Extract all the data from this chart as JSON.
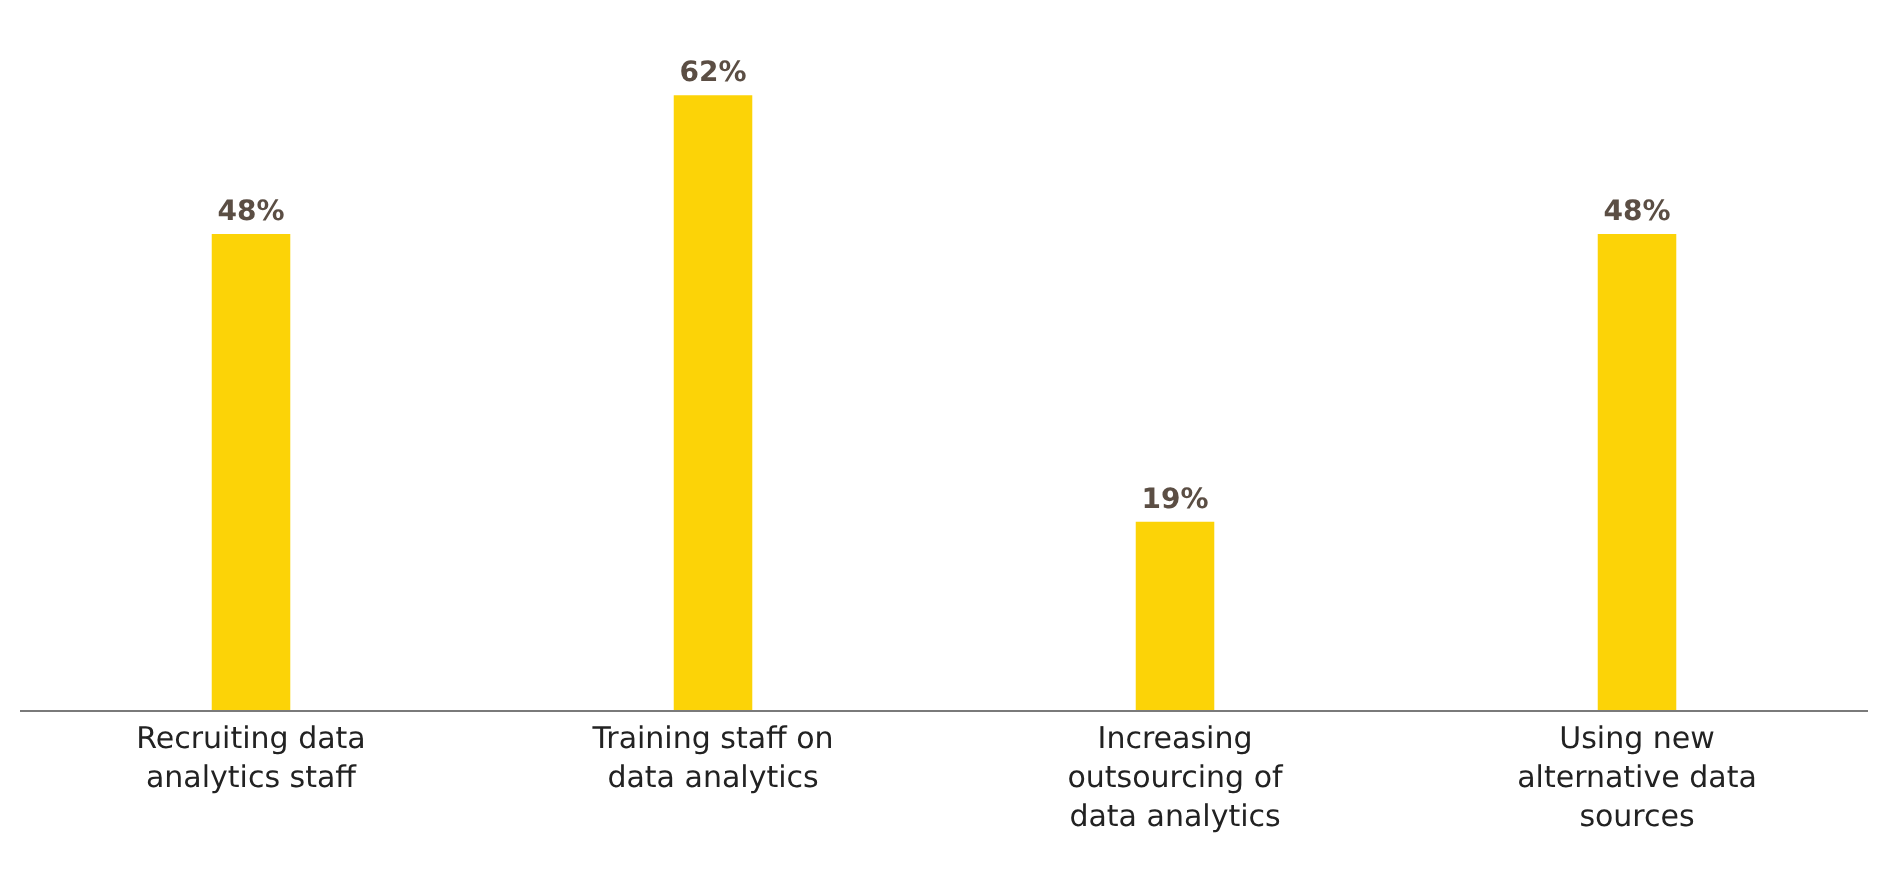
{
  "chart_data": {
    "type": "bar",
    "categories": [
      "Recruiting data analytics staff",
      "Training staff on data analytics",
      "Increasing outsourcing of data analytics",
      "Using new alternative data sources"
    ],
    "values": [
      48,
      62,
      19,
      48
    ],
    "color": "#fcd307",
    "value_labels": [
      "48%",
      "62%",
      "19%",
      "48%"
    ]
  }
}
